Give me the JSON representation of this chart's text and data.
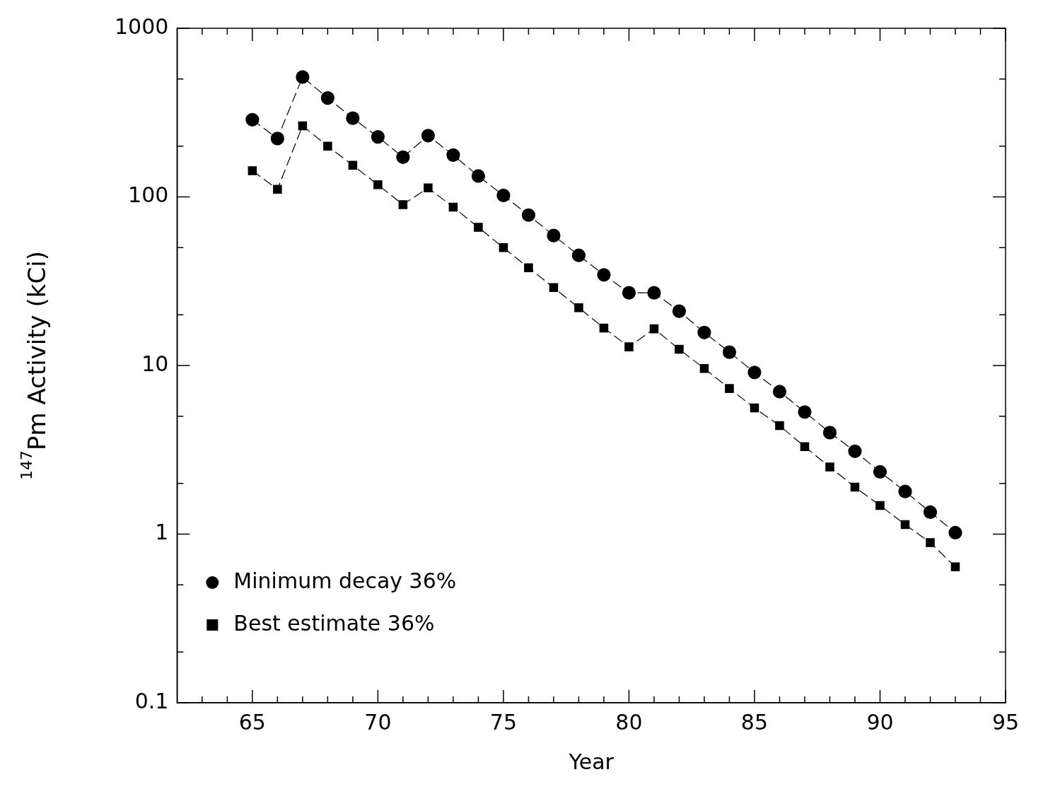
{
  "chart_data": {
    "type": "line",
    "xlabel": "Year",
    "ylabel": "$^{147}$Pm Activity (kCi)",
    "x": [
      65,
      66,
      67,
      68,
      69,
      70,
      71,
      72,
      73,
      74,
      75,
      76,
      77,
      78,
      79,
      80,
      81,
      82,
      83,
      84,
      85,
      86,
      87,
      88,
      89,
      90,
      91,
      92,
      93
    ],
    "series": [
      {
        "name": "Minimum decay 36%",
        "color": "#000000",
        "marker": "circle",
        "values": [
          287,
          222,
          514,
          386,
          293,
          227,
          172,
          231,
          177,
          133,
          102,
          78,
          59,
          45,
          34.5,
          27,
          27,
          21,
          15.7,
          12,
          9.1,
          7.0,
          5.3,
          4.0,
          3.1,
          2.34,
          1.79,
          1.35,
          1.02
        ]
      },
      {
        "name": "Best estimate 36%",
        "color": "#000000",
        "marker": "square",
        "values": [
          143,
          111,
          264,
          200,
          154,
          118,
          90,
          113,
          87,
          66,
          50,
          38,
          29,
          22,
          16.7,
          12.9,
          16.5,
          12.5,
          9.6,
          7.3,
          5.6,
          4.4,
          3.3,
          2.5,
          1.9,
          1.48,
          1.14,
          0.89,
          0.64
        ]
      }
    ],
    "xlim": [
      62,
      95
    ],
    "xticks": [
      {
        "value": 63,
        "label": null
      },
      {
        "value": 64,
        "label": null
      },
      65,
      {
        "value": 66,
        "label": null
      },
      {
        "value": 67,
        "label": null
      },
      {
        "value": 68,
        "label": null
      },
      {
        "value": 69,
        "label": null
      },
      70,
      {
        "value": 71,
        "label": null
      },
      {
        "value": 72,
        "label": null
      },
      {
        "value": 73,
        "label": null
      },
      {
        "value": 74,
        "label": null
      },
      75,
      {
        "value": 76,
        "label": null
      },
      {
        "value": 77,
        "label": null
      },
      {
        "value": 78,
        "label": null
      },
      {
        "value": 79,
        "label": null
      },
      80,
      {
        "value": 81,
        "label": null
      },
      {
        "value": 82,
        "label": null
      },
      {
        "value": 83,
        "label": null
      },
      {
        "value": 84,
        "label": null
      },
      85,
      {
        "value": 86,
        "label": null
      },
      {
        "value": 87,
        "label": null
      },
      {
        "value": 88,
        "label": null
      },
      {
        "value": 89,
        "label": null
      },
      90,
      {
        "value": 91,
        "label": null
      },
      {
        "value": 92,
        "label": null
      },
      {
        "value": 93,
        "label": null
      },
      {
        "value": 94,
        "label": null
      },
      95
    ],
    "ylim": [
      0.1,
      1000
    ],
    "log": "y",
    "yticks": [
      0.1,
      {
        "value": 0.2,
        "label": null
      },
      {
        "value": 0.5,
        "label": null
      },
      1,
      {
        "value": 2,
        "label": null
      },
      {
        "value": 5,
        "label": null
      },
      10,
      {
        "value": 20,
        "label": null
      },
      {
        "value": 50,
        "label": null
      },
      100,
      {
        "value": 200,
        "label": null
      },
      {
        "value": 500,
        "label": null
      },
      1000
    ],
    "grid": false,
    "legend": "bottom left",
    "line_style": "dashed"
  }
}
